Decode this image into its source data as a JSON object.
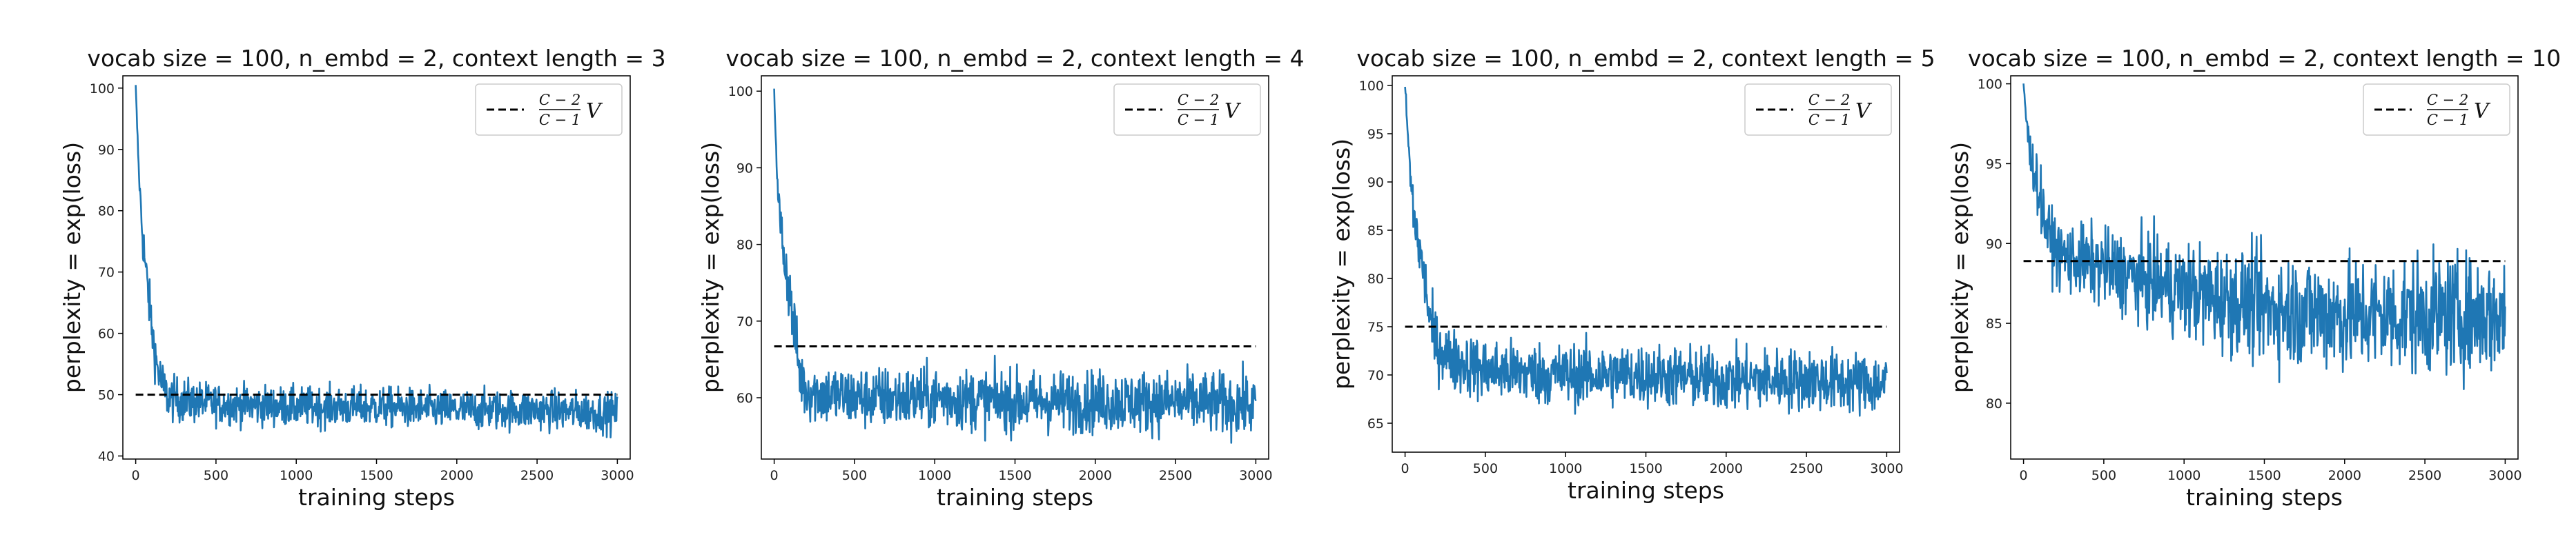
{
  "chart_data": [
    {
      "type": "line",
      "title": "vocab size = 100, n_embd = 2, context length = 3",
      "xlabel": "training steps",
      "ylabel": "perplexity = exp(loss)",
      "xlim": [
        -80,
        3080
      ],
      "ylim": [
        39.5,
        102
      ],
      "xticks": [
        0,
        500,
        1000,
        1500,
        2000,
        2500,
        3000
      ],
      "yticks": [
        40,
        50,
        60,
        70,
        80,
        90,
        100
      ],
      "grid": false,
      "legend_position": "top-right",
      "series": [
        {
          "style": "solid",
          "color": "#1f77b4",
          "x": [
            0,
            20,
            40,
            60,
            80,
            100,
            130,
            160,
            200,
            300,
            500,
            1000,
            1500,
            2000,
            2500,
            3000
          ],
          "y": [
            100,
            86,
            77,
            71,
            66,
            61,
            55,
            52,
            49.5,
            49,
            48.5,
            48,
            48,
            47.5,
            47.5,
            47
          ],
          "noise": [
            0.5,
            0.5,
            2,
            2,
            2,
            2,
            2,
            2,
            1.8,
            1.8,
            1.6,
            1.6,
            1.6,
            1.6,
            1.6,
            1.6
          ]
        },
        {
          "style": "dashed",
          "color": "#000000",
          "x": [
            0,
            3000
          ],
          "y": [
            50,
            50
          ]
        }
      ],
      "legend": {
        "label": "V",
        "frac_num": "C − 2",
        "frac_den": "C − 1"
      }
    },
    {
      "type": "line",
      "title": "vocab size = 100, n_embd = 2, context length = 4",
      "xlabel": "training steps",
      "ylabel": "perplexity = exp(loss)",
      "xlim": [
        -80,
        3080
      ],
      "ylim": [
        52,
        102
      ],
      "xticks": [
        0,
        500,
        1000,
        1500,
        2000,
        2500,
        3000
      ],
      "yticks": [
        60,
        70,
        80,
        90,
        100
      ],
      "grid": false,
      "legend_position": "top-right",
      "series": [
        {
          "style": "solid",
          "color": "#1f77b4",
          "x": [
            0,
            20,
            40,
            60,
            80,
            100,
            130,
            160,
            200,
            300,
            500,
            1000,
            1500,
            2000,
            2500,
            3000
          ],
          "y": [
            100,
            88,
            82,
            79,
            76,
            73,
            68,
            63,
            61,
            60.5,
            60,
            60,
            59.5,
            59.5,
            59.5,
            59
          ],
          "noise": [
            0.5,
            0.5,
            2,
            2,
            2,
            2,
            2,
            2,
            2,
            2,
            2,
            2,
            2,
            2,
            2,
            2
          ]
        },
        {
          "style": "dashed",
          "color": "#000000",
          "x": [
            0,
            3000
          ],
          "y": [
            66.7,
            66.7
          ]
        }
      ],
      "legend": {
        "label": "V",
        "frac_num": "C − 2",
        "frac_den": "C − 1"
      }
    },
    {
      "type": "line",
      "title": "vocab size = 100, n_embd = 2, context length = 5",
      "xlabel": "training steps",
      "ylabel": "perplexity = exp(loss)",
      "xlim": [
        -80,
        3080
      ],
      "ylim": [
        62,
        101
      ],
      "xticks": [
        0,
        500,
        1000,
        1500,
        2000,
        2500,
        3000
      ],
      "yticks": [
        65,
        70,
        75,
        80,
        85,
        90,
        95,
        100
      ],
      "grid": false,
      "legend_position": "top-right",
      "series": [
        {
          "style": "solid",
          "color": "#1f77b4",
          "x": [
            0,
            20,
            40,
            60,
            80,
            100,
            130,
            160,
            200,
            300,
            500,
            1000,
            1500,
            2000,
            2500,
            3000
          ],
          "y": [
            100,
            94,
            89,
            86,
            84,
            82,
            79,
            75,
            73,
            71.5,
            70.5,
            70,
            70,
            69.5,
            69.5,
            69
          ],
          "noise": [
            0.4,
            0.4,
            1.5,
            1.5,
            1.5,
            1.5,
            1.5,
            1.6,
            1.6,
            1.6,
            1.6,
            1.6,
            1.6,
            1.6,
            1.6,
            1.6
          ]
        },
        {
          "style": "dashed",
          "color": "#000000",
          "x": [
            0,
            3000
          ],
          "y": [
            75,
            75
          ]
        }
      ],
      "legend": {
        "label": "V",
        "frac_num": "C − 2",
        "frac_den": "C − 1"
      }
    },
    {
      "type": "line",
      "title": "vocab size = 100, n_embd = 2, context length = 10",
      "xlabel": "training steps",
      "ylabel": "perplexity = exp(loss)",
      "xlim": [
        -80,
        3080
      ],
      "ylim": [
        76.5,
        100.5
      ],
      "xticks": [
        0,
        500,
        1000,
        1500,
        2000,
        2500,
        3000
      ],
      "yticks": [
        80,
        85,
        90,
        95,
        100
      ],
      "grid": false,
      "legend_position": "top-right",
      "series": [
        {
          "style": "solid",
          "color": "#1f77b4",
          "x": [
            0,
            20,
            40,
            60,
            80,
            100,
            130,
            160,
            200,
            300,
            500,
            1000,
            1500,
            2000,
            2500,
            3000
          ],
          "y": [
            100,
            97.5,
            95.5,
            95,
            94,
            93,
            91.5,
            90.5,
            89.5,
            89,
            88.5,
            87,
            86,
            85.5,
            85.5,
            85.5
          ],
          "noise": [
            0.3,
            0.5,
            0.8,
            0.8,
            0.9,
            0.9,
            1.0,
            1.0,
            1.0,
            1.1,
            1.2,
            1.5,
            1.7,
            1.8,
            1.8,
            1.8
          ]
        },
        {
          "style": "dashed",
          "color": "#000000",
          "x": [
            0,
            3000
          ],
          "y": [
            88.9,
            88.9
          ]
        }
      ],
      "legend": {
        "label": "V",
        "frac_num": "C − 2",
        "frac_den": "C − 1"
      }
    }
  ]
}
